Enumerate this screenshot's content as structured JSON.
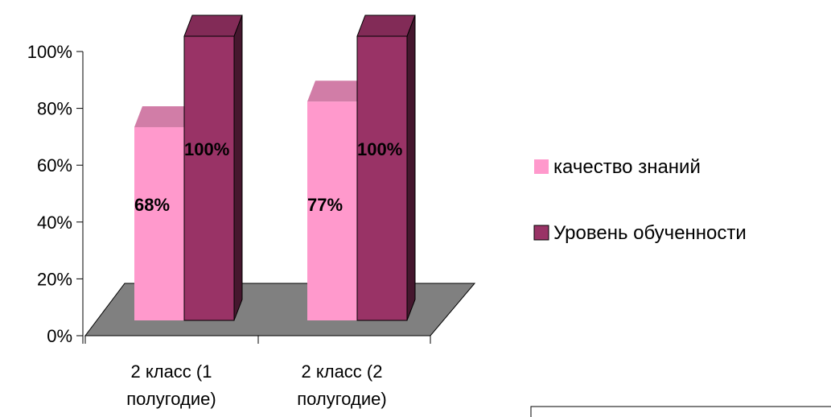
{
  "chart_data": {
    "type": "bar",
    "categories": [
      "2 класс (1 полугодие)",
      "2 класс (2 полугодие)"
    ],
    "category_lines": [
      [
        "2 класс (1",
        "полугодие)"
      ],
      [
        "2 класс (2",
        "полугодие)"
      ]
    ],
    "series": [
      {
        "name": "качество знаний",
        "values": [
          68,
          77
        ],
        "labels": [
          "68%",
          "77%"
        ],
        "color": "#ff99cc"
      },
      {
        "name": "Уровень обученности",
        "values": [
          100,
          100
        ],
        "labels": [
          "100%",
          "100%"
        ],
        "color": "#993366"
      }
    ],
    "yticks": [
      "0%",
      "20%",
      "40%",
      "60%",
      "80%",
      "100%"
    ],
    "ylim": [
      0,
      100
    ],
    "legend_position": "right",
    "three_d": true,
    "floor_color": "#808080"
  }
}
